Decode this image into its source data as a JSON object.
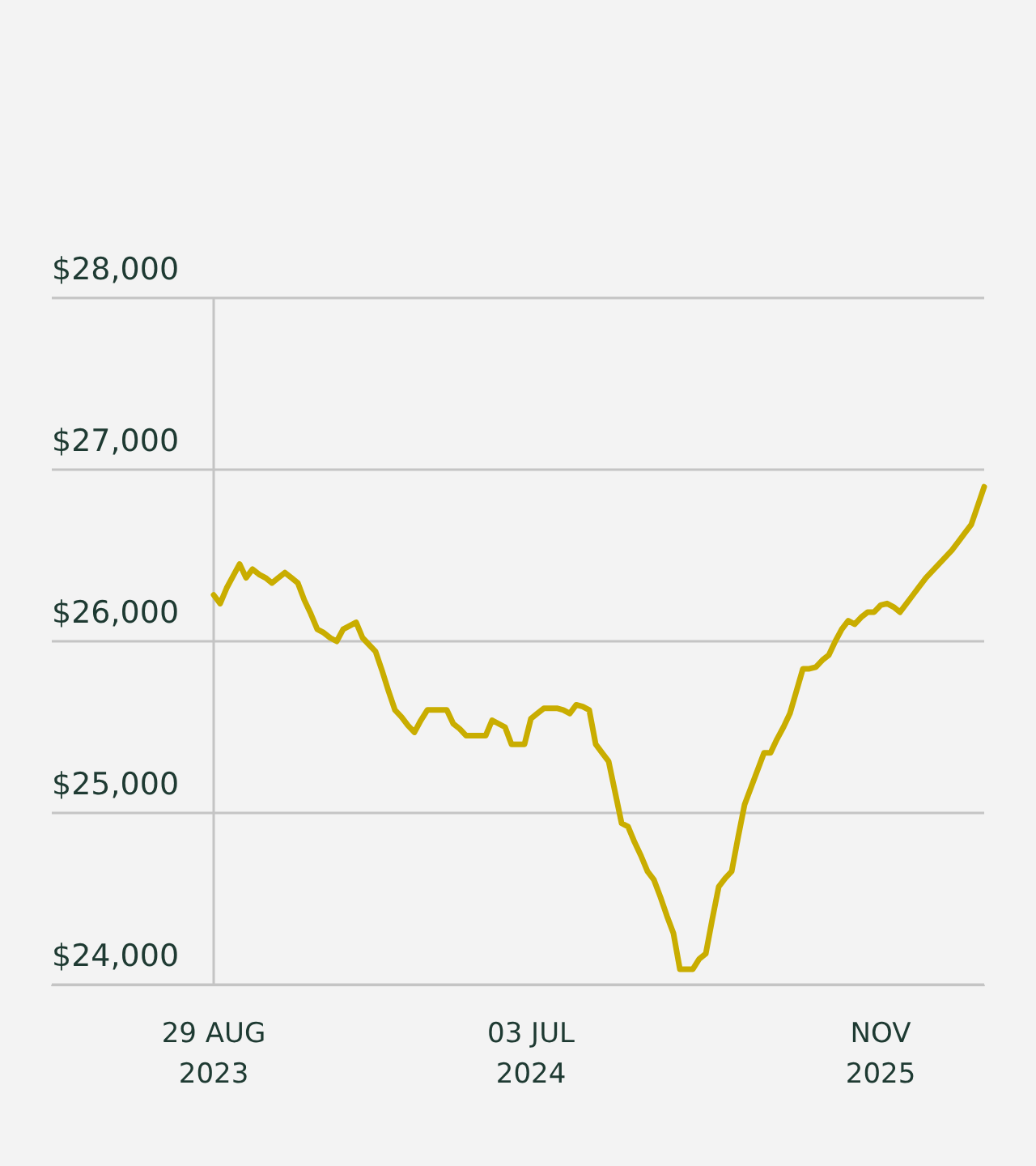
{
  "chart_data": {
    "type": "line",
    "categories": [
      "29 AUG\n2023",
      null,
      null,
      null,
      null,
      null,
      null,
      null,
      null,
      null,
      null,
      null,
      null,
      null,
      null,
      null,
      null,
      null,
      null,
      null,
      null,
      null,
      null,
      null,
      null,
      null,
      null,
      null,
      null,
      null,
      null,
      null,
      null,
      null,
      null,
      null,
      null,
      null,
      null,
      null,
      null,
      null,
      null,
      null,
      null,
      null,
      null,
      null,
      null,
      "03 JUL\n2024",
      null,
      null,
      null,
      null,
      null,
      null,
      null,
      null,
      null,
      null,
      null,
      null,
      null,
      null,
      null,
      null,
      null,
      null,
      null,
      null,
      null,
      null,
      null,
      null,
      null,
      null,
      null,
      null,
      null,
      null,
      null,
      null,
      null,
      null,
      null,
      null,
      null,
      null,
      null,
      null,
      null,
      null,
      null,
      null,
      null,
      null,
      null,
      null,
      null,
      null,
      null,
      null,
      null,
      "NOV\n2025",
      null,
      null,
      null,
      null,
      null,
      null,
      null,
      null,
      null,
      null,
      null,
      null,
      null,
      null,
      null,
      null
    ],
    "series": [
      {
        "color": "#c9ad00",
        "values": [
          26270,
          26220,
          26310,
          26380,
          26450,
          26370,
          26420,
          26390,
          26370,
          26340,
          26370,
          26400,
          26370,
          26340,
          26240,
          26160,
          26070,
          26050,
          26020,
          26000,
          26070,
          26090,
          26110,
          26020,
          25980,
          25940,
          25830,
          25710,
          25600,
          25560,
          25510,
          25470,
          25540,
          25600,
          25600,
          25600,
          25600,
          25520,
          25490,
          25450,
          25450,
          25450,
          25450,
          25540,
          25520,
          25500,
          25400,
          25400,
          25400,
          25550,
          25580,
          25610,
          25610,
          25610,
          25600,
          25580,
          25630,
          25620,
          25600,
          25400,
          25350,
          25300,
          25120,
          24940,
          24920,
          24830,
          24750,
          24660,
          24610,
          24510,
          24400,
          24300,
          24090,
          24090,
          24090,
          24150,
          24180,
          24380,
          24570,
          24620,
          24660,
          24860,
          25050,
          25150,
          25250,
          25350,
          25350,
          25430,
          25500,
          25580,
          25710,
          25840,
          25840,
          25850,
          25890,
          25920,
          26000,
          26070,
          26120,
          26100,
          26140,
          26170,
          26170,
          26210,
          26220,
          26200,
          26170,
          26220,
          26270,
          26320,
          26370,
          26410,
          26450,
          26490,
          26530,
          26580,
          26630,
          26680,
          26790,
          26900
        ]
      }
    ],
    "ylim": [
      24000,
      28000
    ],
    "yticks": [
      {
        "value": 24000,
        "label": "$24,000"
      },
      {
        "value": 25000,
        "label": "$25,000"
      },
      {
        "value": 26000,
        "label": "$26,000"
      },
      {
        "value": 27000,
        "label": "$27,000"
      },
      {
        "value": 28000,
        "label": "$28,000"
      }
    ],
    "grid": "y"
  }
}
